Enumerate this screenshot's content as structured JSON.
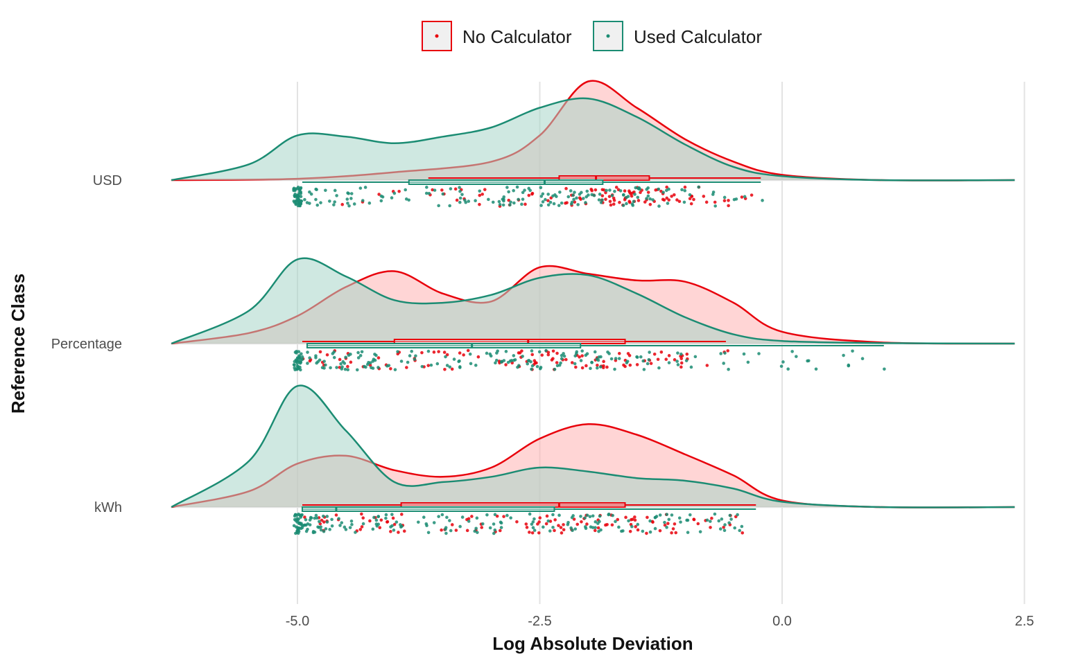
{
  "chart_data": {
    "type": "raincloud",
    "xlabel": "Log Absolute Deviation",
    "ylabel": "Reference Class",
    "xlim": [
      -6.3,
      2.5
    ],
    "x_ticks": [
      -5.0,
      -2.5,
      0.0,
      2.5
    ],
    "x_tick_labels": [
      "-5.0",
      "-2.5",
      "0.0",
      "2.5"
    ],
    "categories": [
      "USD",
      "Percentage",
      "kWh"
    ],
    "grid": "vertical",
    "legend_position": "top",
    "series": [
      {
        "name": "No Calculator",
        "color": "#e8000b",
        "fill": "#ffb3b3",
        "density": {
          "USD": [
            [
              -6.3,
              0.0
            ],
            [
              -5.0,
              0.01
            ],
            [
              -4.0,
              0.06
            ],
            [
              -3.0,
              0.14
            ],
            [
              -2.5,
              0.34
            ],
            [
              -2.0,
              0.75
            ],
            [
              -1.5,
              0.55
            ],
            [
              -1.0,
              0.31
            ],
            [
              -0.5,
              0.14
            ],
            [
              0.0,
              0.04
            ],
            [
              1.0,
              0.0
            ],
            [
              2.4,
              0.0
            ]
          ],
          "Percentage": [
            [
              -6.3,
              0.0
            ],
            [
              -5.5,
              0.08
            ],
            [
              -5.0,
              0.21
            ],
            [
              -4.5,
              0.43
            ],
            [
              -4.0,
              0.55
            ],
            [
              -3.5,
              0.38
            ],
            [
              -3.0,
              0.32
            ],
            [
              -2.5,
              0.58
            ],
            [
              -2.0,
              0.53
            ],
            [
              -1.5,
              0.48
            ],
            [
              -1.0,
              0.47
            ],
            [
              -0.5,
              0.31
            ],
            [
              0.0,
              0.09
            ],
            [
              1.0,
              0.01
            ],
            [
              2.4,
              0.0
            ]
          ],
          "kWh": [
            [
              -6.3,
              0.0
            ],
            [
              -5.5,
              0.12
            ],
            [
              -5.0,
              0.33
            ],
            [
              -4.5,
              0.39
            ],
            [
              -4.0,
              0.28
            ],
            [
              -3.5,
              0.23
            ],
            [
              -3.0,
              0.3
            ],
            [
              -2.5,
              0.52
            ],
            [
              -2.0,
              0.63
            ],
            [
              -1.5,
              0.55
            ],
            [
              -1.0,
              0.4
            ],
            [
              -0.5,
              0.24
            ],
            [
              0.0,
              0.05
            ],
            [
              1.0,
              0.0
            ],
            [
              2.4,
              0.0
            ]
          ]
        },
        "boxplot": {
          "USD": {
            "min": -3.65,
            "q1": -2.3,
            "median": -1.92,
            "q3": -1.37,
            "max": -0.22
          },
          "Percentage": {
            "min": -4.95,
            "q1": -4.0,
            "median": -2.62,
            "q3": -1.62,
            "max": -0.58
          },
          "kWh": {
            "min": -4.95,
            "q1": -3.93,
            "median": -2.3,
            "q3": -1.62,
            "max": -0.27
          }
        },
        "points_x_range": {
          "USD": [
            -4.9,
            -0.2
          ],
          "Percentage": [
            -4.95,
            -0.55
          ],
          "kWh": [
            -4.95,
            -0.3
          ]
        }
      },
      {
        "name": "Used Calculator",
        "color": "#1b8c73",
        "fill": "#a8d5c8",
        "density": {
          "USD": [
            [
              -6.3,
              0.0
            ],
            [
              -5.5,
              0.12
            ],
            [
              -5.0,
              0.34
            ],
            [
              -4.5,
              0.33
            ],
            [
              -4.0,
              0.28
            ],
            [
              -3.5,
              0.33
            ],
            [
              -3.0,
              0.4
            ],
            [
              -2.5,
              0.55
            ],
            [
              -2.0,
              0.62
            ],
            [
              -1.5,
              0.48
            ],
            [
              -1.0,
              0.27
            ],
            [
              -0.5,
              0.1
            ],
            [
              0.0,
              0.03
            ],
            [
              1.0,
              0.0
            ],
            [
              2.4,
              0.0
            ]
          ],
          "Percentage": [
            [
              -6.3,
              0.0
            ],
            [
              -5.5,
              0.25
            ],
            [
              -5.0,
              0.64
            ],
            [
              -4.5,
              0.51
            ],
            [
              -4.0,
              0.33
            ],
            [
              -3.5,
              0.31
            ],
            [
              -3.0,
              0.37
            ],
            [
              -2.5,
              0.5
            ],
            [
              -2.0,
              0.52
            ],
            [
              -1.5,
              0.38
            ],
            [
              -1.0,
              0.2
            ],
            [
              -0.5,
              0.07
            ],
            [
              0.0,
              0.02
            ],
            [
              1.0,
              0.004
            ],
            [
              2.4,
              0.0
            ]
          ],
          "kWh": [
            [
              -6.3,
              0.0
            ],
            [
              -5.5,
              0.35
            ],
            [
              -5.0,
              0.92
            ],
            [
              -4.5,
              0.58
            ],
            [
              -4.0,
              0.19
            ],
            [
              -3.5,
              0.19
            ],
            [
              -3.0,
              0.23
            ],
            [
              -2.5,
              0.3
            ],
            [
              -2.0,
              0.27
            ],
            [
              -1.5,
              0.22
            ],
            [
              -1.0,
              0.2
            ],
            [
              -0.5,
              0.14
            ],
            [
              0.0,
              0.04
            ],
            [
              1.0,
              0.0
            ],
            [
              2.4,
              0.0
            ]
          ]
        },
        "boxplot": {
          "USD": {
            "min": -4.95,
            "q1": -3.85,
            "median": -2.45,
            "q3": -1.85,
            "max": -0.22
          },
          "Percentage": {
            "min": -4.9,
            "q1": -4.9,
            "median": -3.2,
            "q3": -2.08,
            "max": 1.05
          },
          "kWh": {
            "min": -4.95,
            "q1": -4.95,
            "median": -4.6,
            "q3": -2.35,
            "max": -0.27
          }
        },
        "points_x_range": {
          "USD": [
            -5.0,
            -0.2
          ],
          "Percentage": [
            -5.0,
            1.1
          ],
          "kWh": [
            -5.0,
            -0.3
          ]
        }
      }
    ]
  }
}
